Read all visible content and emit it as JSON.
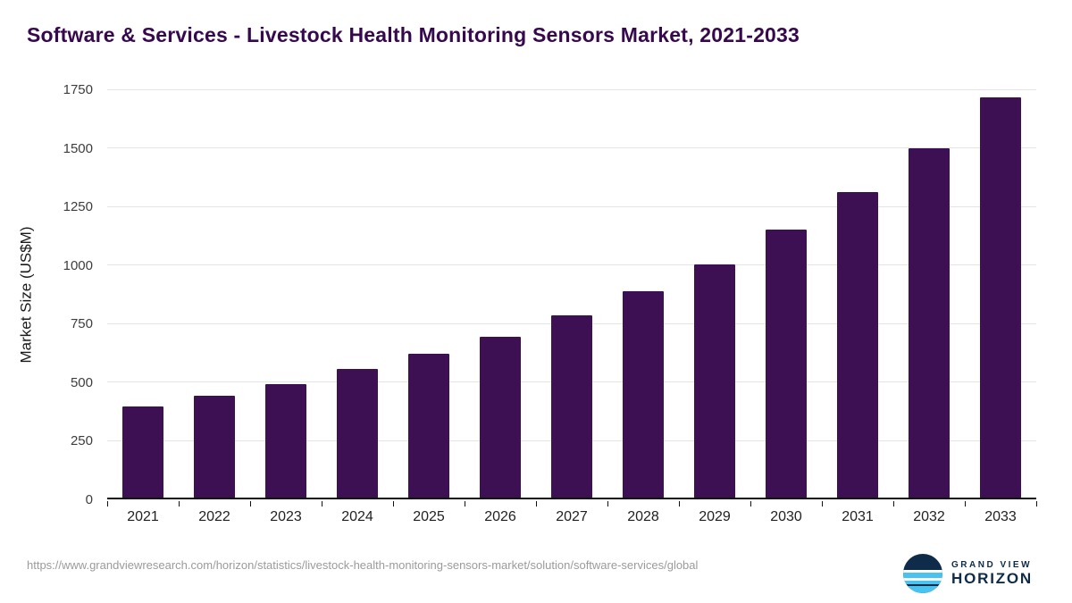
{
  "chart_data": {
    "type": "bar",
    "title": "Software & Services - Livestock Health Monitoring Sensors Market, 2021-2033",
    "categories": [
      "2021",
      "2022",
      "2023",
      "2024",
      "2025",
      "2026",
      "2027",
      "2028",
      "2029",
      "2030",
      "2031",
      "2032",
      "2033"
    ],
    "values": [
      390,
      435,
      485,
      550,
      613,
      688,
      777,
      880,
      995,
      1143,
      1304,
      1490,
      1710
    ],
    "xlabel": "",
    "ylabel": "Market Size (US$M)",
    "ylim": [
      0,
      1750
    ],
    "yticks": [
      0,
      250,
      500,
      750,
      1000,
      1250,
      1500,
      1750
    ],
    "grid": "horizontal",
    "legend": "none",
    "bar_color": "#3c1053"
  },
  "footer": {
    "source_url": "https://www.grandviewresearch.com/horizon/statistics/livestock-health-monitoring-sensors-market/solution/software-services/global",
    "logo": {
      "top": "GRAND VIEW",
      "bottom": "HORIZON"
    }
  },
  "colors": {
    "title": "#36084e",
    "bar": "#3c1053",
    "gridline": "#e4e4e4",
    "axis": "#111111",
    "logo_navy": "#0e2c49",
    "logo_blue": "#49c3f0"
  }
}
